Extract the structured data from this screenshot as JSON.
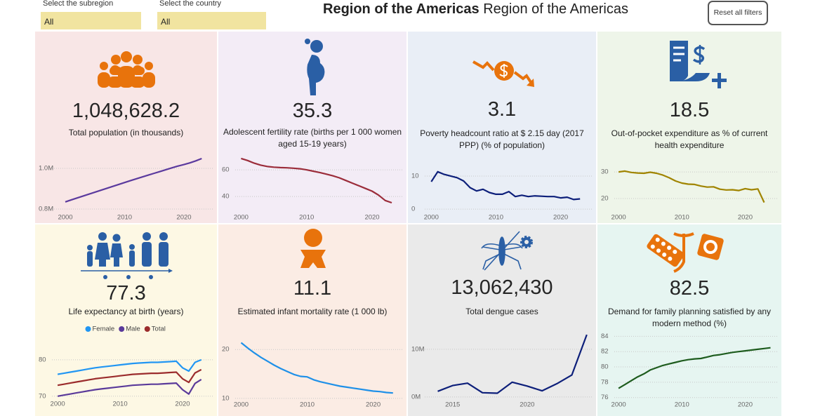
{
  "header": {
    "subregion_label": "Select the subregion",
    "subregion_value": "All",
    "country_label": "Select the country",
    "country_value": "All",
    "title_bold": "Region of the Americas",
    "title_regular": "Region of the Americas",
    "reset_button": "Reset all filters"
  },
  "chart_data": [
    {
      "type": "line",
      "kpi": "1,048,628.2",
      "title": "Total population (in thousands)",
      "x": [
        2000,
        2001,
        2002,
        2003,
        2004,
        2005,
        2006,
        2007,
        2008,
        2009,
        2010,
        2011,
        2012,
        2013,
        2014,
        2015,
        2016,
        2017,
        2018,
        2019,
        2020,
        2021,
        2022,
        2023
      ],
      "series": [
        {
          "color": "#5b3a9e",
          "values": [
            835000,
            845000,
            854500,
            864000,
            873500,
            883000,
            892500,
            902000,
            911500,
            921000,
            930500,
            940000,
            949000,
            958000,
            967000,
            976000,
            985000,
            994000,
            1003000,
            1011500,
            1019000,
            1027000,
            1037000,
            1048628.2
          ]
        }
      ],
      "xlim": [
        1999.05,
        2024.5
      ],
      "xticks": [
        2000,
        2010,
        2020
      ],
      "ylim": [
        793000,
        1052000
      ],
      "yticks": [
        {
          "value": 800000,
          "label": "0.8M"
        },
        {
          "value": 1000000,
          "label": "1.0M"
        }
      ],
      "grid": true
    },
    {
      "type": "line",
      "kpi": "35.3",
      "title": "Adolescent fertility rate (births per 1 000 women aged 15-19 years)",
      "x": [
        2000,
        2001,
        2002,
        2003,
        2004,
        2005,
        2006,
        2007,
        2008,
        2009,
        2010,
        2011,
        2012,
        2013,
        2014,
        2015,
        2016,
        2017,
        2018,
        2019,
        2020,
        2021,
        2022,
        2023
      ],
      "series": [
        {
          "color": "#9b2c3a",
          "values": [
            68.5,
            67,
            65,
            63.5,
            62.5,
            62,
            61.7,
            61.5,
            61.2,
            60.8,
            60,
            59,
            58,
            56.8,
            55.5,
            54,
            52,
            50,
            48,
            46,
            44,
            41,
            37,
            35.3
          ]
        }
      ],
      "xlim": [
        1999.1,
        2024.5
      ],
      "xticks": [
        2000,
        2010,
        2020
      ],
      "ylim": [
        29.5,
        69
      ],
      "yticks": [
        40,
        60
      ],
      "grid": true
    },
    {
      "type": "line",
      "kpi": "3.1",
      "title": "Poverty headcount ratio at $ 2.15 day (2017 PPP) (% of population)",
      "x": [
        2000,
        2001,
        2002,
        2003,
        2004,
        2005,
        2006,
        2007,
        2008,
        2009,
        2010,
        2011,
        2012,
        2013,
        2014,
        2015,
        2016,
        2017,
        2018,
        2019,
        2020,
        2021,
        2022,
        2023
      ],
      "series": [
        {
          "color": "#0d1f7a",
          "values": [
            8.3,
            11.3,
            10.5,
            10,
            9.5,
            8.5,
            6.5,
            5.5,
            6,
            5,
            4.5,
            4.5,
            5.3,
            3.8,
            4.2,
            3.8,
            4,
            3.9,
            3.8,
            3.8,
            3.4,
            3.6,
            2.9,
            3.1
          ]
        }
      ],
      "xlim": [
        1999.1,
        2024.5
      ],
      "xticks": [
        2000,
        2010,
        2020
      ],
      "ylim": [
        -0.4,
        15.5
      ],
      "yticks": [
        0,
        10
      ],
      "grid": true
    },
    {
      "type": "line",
      "kpi": "18.5",
      "title": "Out-of-pocket expenditure as % of current health expenditure",
      "x": [
        2000,
        2001,
        2002,
        2003,
        2004,
        2005,
        2006,
        2007,
        2008,
        2009,
        2010,
        2011,
        2012,
        2013,
        2014,
        2015,
        2016,
        2017,
        2018,
        2019,
        2020,
        2021,
        2022,
        2023
      ],
      "series": [
        {
          "color": "#a08400",
          "values": [
            30,
            30.3,
            29.8,
            29.6,
            29.5,
            29.9,
            29.5,
            28.8,
            27.8,
            26.6,
            25.8,
            25.4,
            25.3,
            24.7,
            24.3,
            24.4,
            23.5,
            23.2,
            23.3,
            23,
            23.7,
            23.3,
            23.6,
            18.5
          ]
        }
      ],
      "xlim": [
        1999.1,
        2024.5
      ],
      "xticks": [
        2000,
        2010,
        2020
      ],
      "ylim": [
        15.5,
        35.3
      ],
      "yticks": [
        20,
        30
      ],
      "grid": true
    },
    {
      "type": "line",
      "kpi": "77.3",
      "title": "Life expectancy at birth (years)",
      "x": [
        2000,
        2001,
        2002,
        2003,
        2004,
        2005,
        2006,
        2007,
        2008,
        2009,
        2010,
        2011,
        2012,
        2013,
        2014,
        2015,
        2016,
        2017,
        2018,
        2019,
        2020,
        2021,
        2022,
        2023
      ],
      "series": [
        {
          "name": "Female",
          "color": "#2196f3",
          "values": [
            76.0,
            76.3,
            76.6,
            76.9,
            77.2,
            77.5,
            77.8,
            78.0,
            78.2,
            78.4,
            78.6,
            78.8,
            79.0,
            79.1,
            79.2,
            79.3,
            79.3,
            79.4,
            79.5,
            79.6,
            77.8,
            76.9,
            79.3,
            80.0
          ]
        },
        {
          "name": "Male",
          "color": "#5a3a9a",
          "values": [
            70.0,
            70.3,
            70.6,
            70.9,
            71.2,
            71.5,
            71.8,
            72.0,
            72.2,
            72.4,
            72.6,
            72.8,
            73.0,
            73.1,
            73.2,
            73.3,
            73.3,
            73.4,
            73.5,
            73.6,
            71.8,
            70.6,
            73.5,
            74.6
          ]
        },
        {
          "name": "Total",
          "color": "#9b2c2c",
          "values": [
            73.0,
            73.3,
            73.6,
            73.9,
            74.2,
            74.5,
            74.8,
            75.0,
            75.2,
            75.4,
            75.6,
            75.8,
            76.0,
            76.1,
            76.2,
            76.3,
            76.3,
            76.4,
            76.5,
            76.6,
            74.8,
            73.8,
            76.4,
            77.3
          ]
        }
      ],
      "legend": "top",
      "xlim": [
        1999.2,
        2024.5
      ],
      "xticks": [
        2000,
        2010,
        2020
      ],
      "ylim": [
        69,
        84.4
      ],
      "yticks": [
        70,
        80
      ],
      "grid": true
    },
    {
      "type": "line",
      "kpi": "11.1",
      "title": "Estimated infant mortality rate (1 000 lb)",
      "x": [
        2000,
        2001,
        2002,
        2003,
        2004,
        2005,
        2006,
        2007,
        2008,
        2009,
        2010,
        2011,
        2012,
        2013,
        2014,
        2015,
        2016,
        2017,
        2018,
        2019,
        2020,
        2021,
        2022,
        2023
      ],
      "series": [
        {
          "color": "#1e90e8",
          "values": [
            21.4,
            20.3,
            19.3,
            18.4,
            17.6,
            16.8,
            16.1,
            15.5,
            14.9,
            14.5,
            14.4,
            13.8,
            13.4,
            13.1,
            12.8,
            12.5,
            12.3,
            12.1,
            11.9,
            11.7,
            11.5,
            11.4,
            11.2,
            11.1
          ]
        }
      ],
      "xlim": [
        1999.1,
        2024.3
      ],
      "xticks": [
        2000,
        2010,
        2020
      ],
      "ylim": [
        9.7,
        22.9
      ],
      "yticks": [
        10,
        20
      ],
      "grid": true
    },
    {
      "type": "line",
      "kpi": "13,062,430",
      "title": "Total dengue cases",
      "x": [
        2014,
        2015,
        2016,
        2017,
        2018,
        2019,
        2020,
        2021,
        2022,
        2023,
        2024
      ],
      "series": [
        {
          "color": "#0d1f7a",
          "values": [
            1200000,
            2400000,
            2900000,
            900000,
            800000,
            3100000,
            2300000,
            1300000,
            2800000,
            4600000,
            13062430
          ]
        }
      ],
      "xlim": [
        2013.6,
        2024.2
      ],
      "xticks": [
        2015,
        2020
      ],
      "ylim": [
        -600000,
        14100000
      ],
      "yticks": [
        {
          "value": 0,
          "label": "0M"
        },
        {
          "value": 10000000,
          "label": "10M"
        }
      ],
      "grid": true
    },
    {
      "type": "line",
      "kpi": "82.5",
      "title": "Demand for family planning satisfied by any modern method (%)",
      "x": [
        2000,
        2001,
        2002,
        2003,
        2004,
        2005,
        2006,
        2007,
        2008,
        2009,
        2010,
        2011,
        2012,
        2013,
        2014,
        2015,
        2016,
        2017,
        2018,
        2019,
        2020,
        2021,
        2022,
        2023,
        2024
      ],
      "series": [
        {
          "color": "#1e5c1e",
          "values": [
            77.2,
            77.7,
            78.2,
            78.7,
            79.1,
            79.6,
            79.9,
            80.2,
            80.4,
            80.6,
            80.8,
            80.95,
            81.05,
            81.1,
            81.3,
            81.5,
            81.6,
            81.75,
            81.9,
            82.0,
            82.1,
            82.2,
            82.3,
            82.4,
            82.5
          ]
        }
      ],
      "xlim": [
        1999.1,
        2024.5
      ],
      "xticks": [
        2000,
        2010,
        2020
      ],
      "ylim": [
        75.7,
        84.4
      ],
      "yticks": [
        76,
        78,
        80,
        82,
        84
      ],
      "grid": true
    }
  ]
}
